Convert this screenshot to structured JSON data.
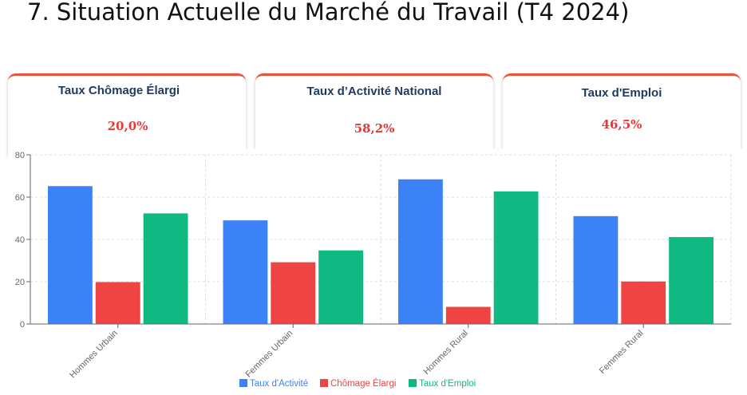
{
  "page": {
    "title": "7. Situation Actuelle du Marché du Travail (T4 2024)"
  },
  "kpis": [
    {
      "label": "Taux Chômage Élargi",
      "value": "20,0%"
    },
    {
      "label": "Taux d’Activité National",
      "value": "58,2%"
    },
    {
      "label": "Taux d'Emploi",
      "value": "46,5%"
    }
  ],
  "colors": {
    "card_accent": "#e8533a",
    "value": "#e53935",
    "label": "#1f3a5f"
  },
  "chart_data": {
    "type": "bar",
    "categories": [
      "Hommes Urbain",
      "Femmes Urbain",
      "Hommes Rural",
      "Femmes Rural"
    ],
    "series": [
      {
        "name": "Taux d'Activité",
        "color": "#3b82f6",
        "values": [
          65.2,
          49.0,
          68.4,
          51.0
        ]
      },
      {
        "name": "Chômage Élargi",
        "color": "#ef4444",
        "values": [
          19.8,
          29.2,
          8.1,
          20.1
        ]
      },
      {
        "name": "Taux d'Emploi",
        "color": "#10b981",
        "values": [
          52.3,
          34.8,
          62.7,
          41.1
        ]
      }
    ],
    "ylim": [
      0,
      80
    ],
    "yticks": [
      0,
      20,
      40,
      60,
      80
    ],
    "grid": true,
    "legend": "bottom"
  }
}
